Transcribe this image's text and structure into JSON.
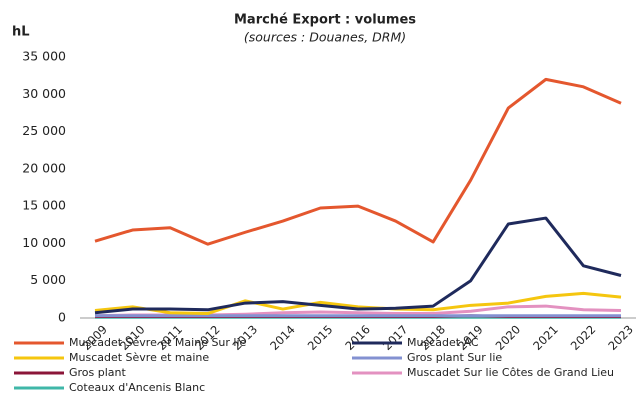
{
  "chart_data": {
    "type": "line",
    "title": "Marché Export : volumes",
    "subtitle": "(sources : Douanes, DRM)",
    "y_label": "hL",
    "categories": [
      "2009",
      "2010",
      "2011",
      "2012",
      "2013",
      "2014",
      "2015",
      "2016",
      "2017",
      "2018",
      "2019",
      "2020",
      "2021",
      "2022",
      "2023"
    ],
    "ylim": [
      0,
      35000
    ],
    "yticks": [
      0,
      {
        "value": 5000,
        "label": "5 000"
      },
      {
        "value": 10000,
        "label": "10 000"
      },
      {
        "value": 15000,
        "label": "15 000"
      },
      {
        "value": 20000,
        "label": "20 000"
      },
      {
        "value": 25000,
        "label": "25 000"
      },
      {
        "value": 30000,
        "label": "30 000"
      },
      {
        "value": 35000,
        "label": "35 000"
      }
    ],
    "series": [
      {
        "name": "Muscadet Sèvre et Maine Sur lie",
        "color": "#e4572e",
        "values": [
          10300,
          11800,
          12100,
          9900,
          11500,
          13000,
          14750,
          15000,
          13000,
          10200,
          18500,
          28150,
          32000,
          31000,
          28800
        ]
      },
      {
        "name": "Muscadet AC",
        "color": "#1f2a5c",
        "values": [
          700,
          1200,
          1200,
          1100,
          2000,
          2200,
          1700,
          1200,
          1300,
          1600,
          5000,
          12600,
          13400,
          7000,
          5700
        ]
      },
      {
        "name": "Muscadet Sèvre et maine",
        "color": "#f5c60f",
        "values": [
          1000,
          1500,
          700,
          600,
          2300,
          1200,
          2100,
          1500,
          1200,
          1100,
          1700,
          2000,
          2900,
          3300,
          2800
        ]
      },
      {
        "name": "Gros plant Sur lie",
        "color": "#8391d1",
        "values": [
          300,
          300,
          300,
          300,
          300,
          300,
          300,
          300,
          300,
          300,
          300,
          300,
          300,
          300,
          300
        ]
      },
      {
        "name": "Gros plant",
        "color": "#8b1538",
        "values": [
          200,
          200,
          200,
          200,
          200,
          200,
          200,
          200,
          200,
          200,
          300,
          200,
          200,
          200,
          200
        ]
      },
      {
        "name": "Muscadet Sur lie Côtes de Grand Lieu",
        "color": "#e391c0",
        "values": [
          300,
          400,
          400,
          400,
          500,
          700,
          800,
          700,
          600,
          600,
          900,
          1500,
          1600,
          1100,
          1000
        ]
      },
      {
        "name": "Coteaux d'Ancenis Blanc",
        "color": "#3fb7a8",
        "values": [
          100,
          100,
          100,
          100,
          100,
          100,
          100,
          100,
          100,
          100,
          100,
          100,
          100,
          100,
          100
        ]
      }
    ],
    "grid": false
  }
}
